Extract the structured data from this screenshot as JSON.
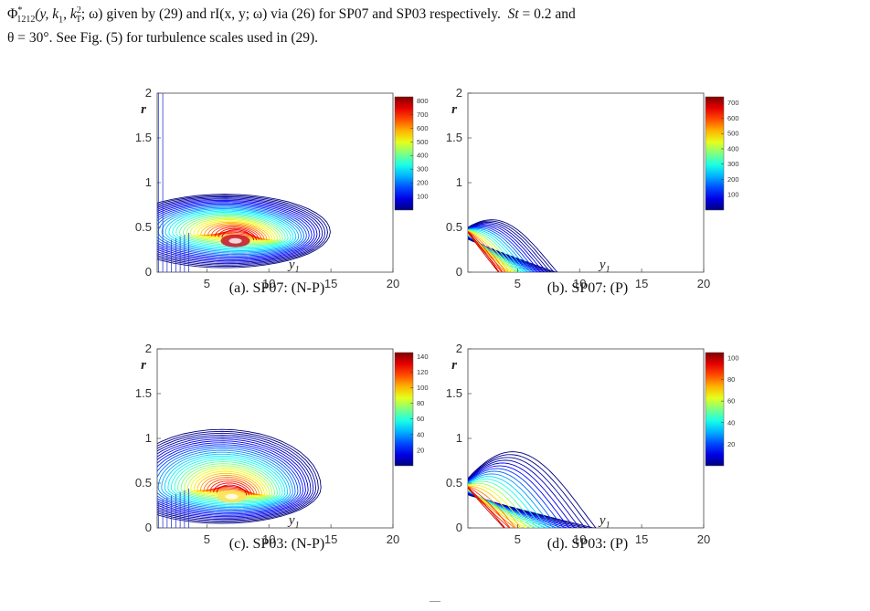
{
  "caption": {
    "line1_a": "Φ",
    "line1_sub": "1212",
    "line1_sup": "*",
    "line1_b": "(y, k",
    "line1_c": "1",
    "line1_d": ", k",
    "line1_e": "2",
    "line1_f": "T",
    "line1_g": "; ω) given by (29) and rI(x, y; ω) via (26) for SP07 and SP03 respectively.",
    "line1_st": "St",
    "line1_st_val": "= 0.2 and",
    "line2": "θ = 30°. See Fig. (5) for turbulence scales used in (29)."
  },
  "colors": {
    "axis": "#444444",
    "contour_low": "#2b3bd6",
    "contour_high": "#8b0000"
  },
  "chart_data": [
    {
      "id": "a",
      "type": "contour",
      "caption": "(a). SP07: (N-P)",
      "xlabel": "y1",
      "ylabel": "r",
      "xlim": [
        1,
        20
      ],
      "ylim": [
        0,
        2
      ],
      "x_ticks": [
        "5",
        "10",
        "15",
        "20"
      ],
      "y_ticks": [
        "0",
        "0.5",
        "1",
        "1.5",
        "2"
      ],
      "colorbar_ticks": [
        "100",
        "200",
        "300",
        "400",
        "500",
        "600",
        "700",
        "800"
      ],
      "colorbar_range": [
        0,
        830
      ],
      "peak": {
        "x": 7.3,
        "r": 0.35
      }
    },
    {
      "id": "b",
      "type": "contour",
      "caption": "(b). SP07: (P)",
      "xlabel": "y1",
      "ylabel": "r",
      "xlim": [
        1,
        20
      ],
      "ylim": [
        0,
        2
      ],
      "x_ticks": [
        "5",
        "10",
        "15",
        "20"
      ],
      "y_ticks": [
        "0",
        "0.5",
        "1",
        "1.5",
        "2"
      ],
      "colorbar_ticks": [
        "100",
        "200",
        "300",
        "400",
        "500",
        "600",
        "700"
      ],
      "colorbar_range": [
        0,
        740
      ],
      "peak": {
        "x": 1.5,
        "r": 0.4
      }
    },
    {
      "id": "c",
      "type": "contour",
      "caption": "(c). SP03: (N-P)",
      "xlabel": "y1",
      "ylabel": "r",
      "xlim": [
        1,
        20
      ],
      "ylim": [
        0,
        2
      ],
      "x_ticks": [
        "5",
        "10",
        "15",
        "20"
      ],
      "y_ticks": [
        "0",
        "0.5",
        "1",
        "1.5",
        "2"
      ],
      "colorbar_ticks": [
        "20",
        "40",
        "60",
        "80",
        "100",
        "120",
        "140"
      ],
      "colorbar_range": [
        0,
        145
      ],
      "peak": {
        "x": 7.0,
        "r": 0.35
      }
    },
    {
      "id": "d",
      "type": "contour",
      "caption": "(d). SP03: (P)",
      "xlabel": "y1",
      "ylabel": "r",
      "xlim": [
        1,
        20
      ],
      "ylim": [
        0,
        2
      ],
      "x_ticks": [
        "5",
        "10",
        "15",
        "20"
      ],
      "y_ticks": [
        "0",
        "0.5",
        "1",
        "1.5",
        "2"
      ],
      "colorbar_ticks": [
        "20",
        "40",
        "60",
        "80",
        "100"
      ],
      "colorbar_range": [
        0,
        105
      ],
      "peak": {
        "x": 1.5,
        "r": 0.4
      }
    }
  ],
  "page_number": "—"
}
